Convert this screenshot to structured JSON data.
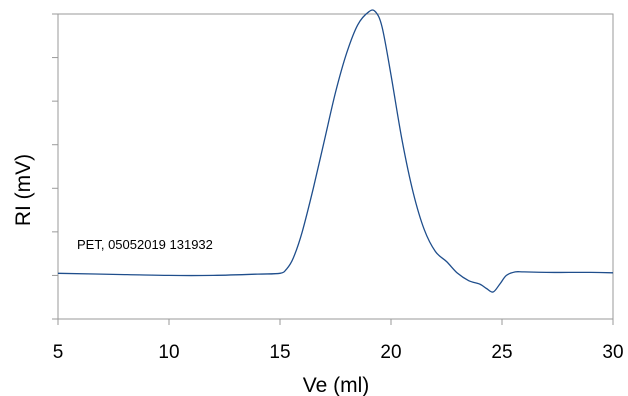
{
  "chart_data": {
    "type": "line",
    "title": "",
    "xlabel": "Ve (ml)",
    "ylabel": "RI (mV)",
    "xlim": [
      5,
      30
    ],
    "ylim": [
      0,
      7
    ],
    "x_ticks": [
      "5",
      "10",
      "15",
      "20",
      "25",
      "30"
    ],
    "y_ticks_labeled": false,
    "grid": false,
    "annotation": "PET, 05052019 131932",
    "line_color": "#1f4e8c",
    "series": [
      {
        "x": [
          5,
          8,
          10,
          12,
          14,
          15,
          15.3,
          15.6,
          16,
          16.5,
          17,
          17.5,
          18,
          18.5,
          19,
          19.3,
          19.6,
          20,
          20.5,
          21,
          21.5,
          22,
          22.5,
          23,
          23.5,
          24,
          24.3,
          24.6,
          24.9,
          25.2,
          25.6,
          26,
          27,
          28,
          29,
          30
        ],
        "y": [
          1.05,
          1.02,
          1.0,
          1.0,
          1.03,
          1.05,
          1.15,
          1.4,
          2.0,
          3.0,
          4.1,
          5.2,
          6.1,
          6.75,
          7.05,
          7.05,
          6.7,
          5.6,
          4.1,
          2.9,
          2.05,
          1.55,
          1.32,
          1.05,
          0.88,
          0.8,
          0.7,
          0.62,
          0.8,
          1.0,
          1.08,
          1.08,
          1.07,
          1.07,
          1.07,
          1.06
        ]
      }
    ]
  }
}
